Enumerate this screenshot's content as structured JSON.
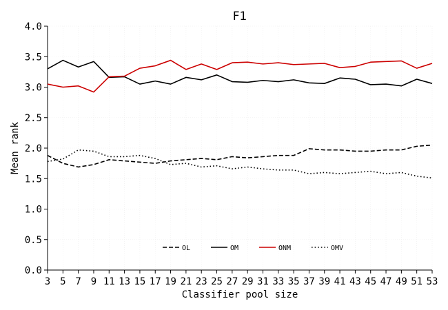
{
  "chart_data": {
    "type": "line",
    "title": "F1",
    "xlabel": "Classifier pool size",
    "ylabel": "Mean rank",
    "xlim": [
      3,
      53
    ],
    "ylim": [
      0.0,
      4.0
    ],
    "xticks": [
      "3",
      "5",
      "7",
      "9",
      "11",
      "13",
      "15",
      "17",
      "19",
      "21",
      "23",
      "25",
      "27",
      "29",
      "31",
      "33",
      "35",
      "37",
      "39",
      "41",
      "43",
      "45",
      "47",
      "49",
      "51",
      "53"
    ],
    "yticks": [
      "0.0",
      "0.5",
      "1.0",
      "1.5",
      "2.0",
      "2.5",
      "3.0",
      "3.5",
      "4.0"
    ],
    "grid": true,
    "legend_position": "bottom-center",
    "x": [
      3,
      5,
      7,
      9,
      11,
      13,
      15,
      17,
      19,
      21,
      23,
      25,
      27,
      29,
      31,
      33,
      35,
      37,
      39,
      41,
      43,
      45,
      47,
      49,
      51,
      53
    ],
    "series": [
      {
        "name": "OL",
        "color": "#000000",
        "dash": "dashed",
        "values": [
          1.88,
          1.75,
          1.69,
          1.73,
          1.81,
          1.79,
          1.77,
          1.75,
          1.79,
          1.81,
          1.83,
          1.81,
          1.86,
          1.84,
          1.86,
          1.88,
          1.88,
          1.99,
          1.97,
          1.97,
          1.95,
          1.95,
          1.97,
          1.97,
          2.03,
          2.05
        ]
      },
      {
        "name": "OM",
        "color": "#000000",
        "dash": "solid",
        "values": [
          3.3,
          3.44,
          3.33,
          3.42,
          3.16,
          3.17,
          3.05,
          3.1,
          3.05,
          3.16,
          3.12,
          3.2,
          3.09,
          3.08,
          3.11,
          3.09,
          3.12,
          3.07,
          3.06,
          3.15,
          3.13,
          3.04,
          3.05,
          3.02,
          3.13,
          3.06
        ]
      },
      {
        "name": "ONM",
        "color": "#cc0000",
        "dash": "solid",
        "values": [
          3.05,
          3.0,
          3.02,
          2.92,
          3.17,
          3.18,
          3.31,
          3.35,
          3.44,
          3.29,
          3.38,
          3.29,
          3.4,
          3.41,
          3.38,
          3.4,
          3.37,
          3.38,
          3.39,
          3.32,
          3.34,
          3.41,
          3.42,
          3.43,
          3.31,
          3.39
        ]
      },
      {
        "name": "OMV",
        "color": "#000000",
        "dash": "dotted",
        "values": [
          1.78,
          1.82,
          1.97,
          1.95,
          1.86,
          1.86,
          1.88,
          1.83,
          1.73,
          1.75,
          1.69,
          1.71,
          1.66,
          1.69,
          1.66,
          1.64,
          1.64,
          1.58,
          1.6,
          1.58,
          1.6,
          1.62,
          1.58,
          1.6,
          1.54,
          1.51
        ]
      }
    ]
  }
}
